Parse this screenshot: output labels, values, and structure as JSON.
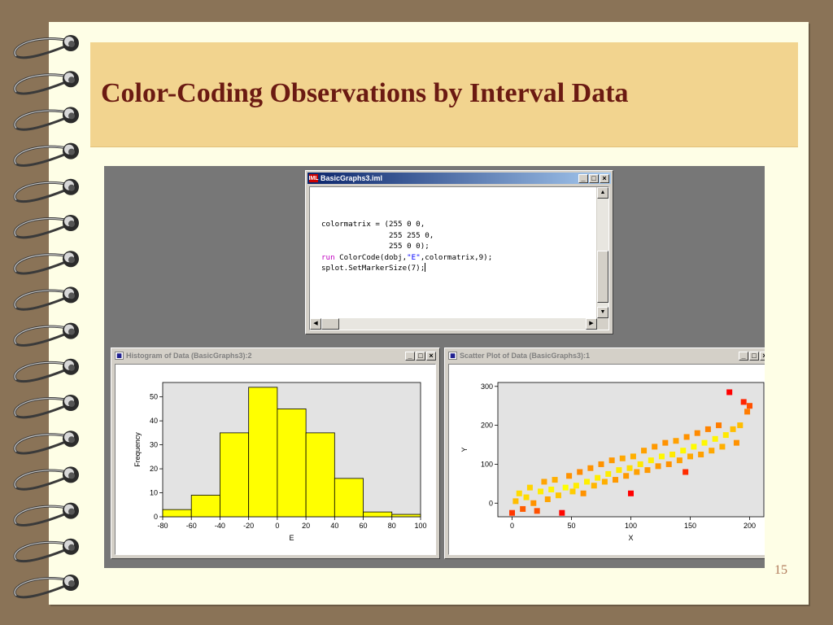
{
  "slide": {
    "title": "Color-Coding Observations by Interval Data",
    "page_number": "15"
  },
  "code_window": {
    "icon_label": "IML",
    "title": "BasicGraphs3.iml",
    "lines": [
      "colormatrix = (255 0 0,",
      "               255 255 0,",
      "               255 0 0);",
      "run ColorCode(dobj,\"E\",colormatrix,9);",
      "splot.SetMarkerSize(7);"
    ]
  },
  "histogram_window": {
    "title": "Histogram of Data (BasicGraphs3):2"
  },
  "scatter_window": {
    "title": "Scatter Plot of Data (BasicGraphs3):1"
  },
  "colors": {
    "bar_fill": "#ffff00",
    "plot_bg": "#e3e3e3",
    "title_text": "#6b1a12",
    "title_band": "#f2d48f",
    "color_low": "#ff0000",
    "color_high": "#ffff00"
  },
  "chart_data": [
    {
      "type": "bar",
      "xlabel": "E",
      "ylabel": "Frequency",
      "x_ticks": [
        -80,
        -60,
        -40,
        -20,
        0,
        20,
        40,
        60,
        80,
        100
      ],
      "y_ticks": [
        0,
        10,
        20,
        30,
        40,
        50
      ],
      "xlim": [
        -80,
        100
      ],
      "ylim": [
        0,
        56
      ],
      "bins": [
        {
          "from": -80,
          "to": -60,
          "count": 3
        },
        {
          "from": -60,
          "to": -40,
          "count": 9
        },
        {
          "from": -40,
          "to": -20,
          "count": 35
        },
        {
          "from": -20,
          "to": 0,
          "count": 54
        },
        {
          "from": 0,
          "to": 20,
          "count": 45
        },
        {
          "from": 20,
          "to": 40,
          "count": 35
        },
        {
          "from": 40,
          "to": 60,
          "count": 16
        },
        {
          "from": 60,
          "to": 80,
          "count": 2
        },
        {
          "from": 80,
          "to": 100,
          "count": 1
        }
      ]
    },
    {
      "type": "scatter",
      "xlabel": "X",
      "ylabel": "Y",
      "x_ticks": [
        0,
        50,
        100,
        150,
        200
      ],
      "y_ticks": [
        0,
        100,
        200,
        300
      ],
      "xlim": [
        -12,
        212
      ],
      "ylim": [
        -35,
        310
      ],
      "color_by": "E",
      "color_ramp": [
        "#ff0000",
        "#ffff00",
        "#ff0000"
      ],
      "points": [
        [
          0,
          -25,
          -55
        ],
        [
          3,
          5,
          -18
        ],
        [
          6,
          25,
          10
        ],
        [
          9,
          -15,
          -45
        ],
        [
          12,
          15,
          -10
        ],
        [
          15,
          40,
          12
        ],
        [
          18,
          0,
          -30
        ],
        [
          21,
          -20,
          -48
        ],
        [
          24,
          30,
          5
        ],
        [
          27,
          55,
          25
        ],
        [
          30,
          10,
          -25
        ],
        [
          33,
          35,
          3
        ],
        [
          36,
          60,
          22
        ],
        [
          39,
          20,
          -16
        ],
        [
          42,
          -25,
          -68
        ],
        [
          45,
          40,
          0
        ],
        [
          48,
          70,
          30
        ],
        [
          51,
          30,
          -14
        ],
        [
          54,
          45,
          -5
        ],
        [
          57,
          80,
          32
        ],
        [
          60,
          25,
          -30
        ],
        [
          63,
          55,
          -4
        ],
        [
          66,
          90,
          30
        ],
        [
          69,
          45,
          -20
        ],
        [
          72,
          65,
          -5
        ],
        [
          75,
          100,
          30
        ],
        [
          78,
          55,
          -22
        ],
        [
          81,
          75,
          -5
        ],
        [
          84,
          110,
          28
        ],
        [
          87,
          60,
          -28
        ],
        [
          90,
          85,
          -6
        ],
        [
          93,
          115,
          24
        ],
        [
          96,
          70,
          -28
        ],
        [
          99,
          90,
          -9
        ],
        [
          100,
          25,
          -75
        ],
        [
          102,
          120,
          22
        ],
        [
          105,
          80,
          -26
        ],
        [
          108,
          100,
          -6
        ],
        [
          111,
          135,
          26
        ],
        [
          114,
          85,
          -28
        ],
        [
          117,
          110,
          -4
        ],
        [
          120,
          145,
          28
        ],
        [
          123,
          95,
          -28
        ],
        [
          126,
          120,
          -2
        ],
        [
          129,
          155,
          30
        ],
        [
          132,
          100,
          -30
        ],
        [
          135,
          125,
          -6
        ],
        [
          138,
          160,
          26
        ],
        [
          141,
          110,
          -26
        ],
        [
          144,
          135,
          -2
        ],
        [
          146,
          80,
          -58
        ],
        [
          147,
          170,
          30
        ],
        [
          150,
          120,
          -24
        ],
        [
          153,
          145,
          -1
        ],
        [
          156,
          180,
          32
        ],
        [
          159,
          125,
          -26
        ],
        [
          162,
          155,
          2
        ],
        [
          165,
          190,
          34
        ],
        [
          168,
          135,
          -24
        ],
        [
          171,
          165,
          3
        ],
        [
          174,
          200,
          36
        ],
        [
          177,
          145,
          -22
        ],
        [
          180,
          175,
          6
        ],
        [
          183,
          285,
          85
        ],
        [
          186,
          190,
          18
        ],
        [
          189,
          155,
          -30
        ],
        [
          192,
          200,
          18
        ],
        [
          195,
          260,
          60
        ],
        [
          198,
          235,
          36
        ],
        [
          200,
          250,
          48
        ]
      ]
    }
  ]
}
